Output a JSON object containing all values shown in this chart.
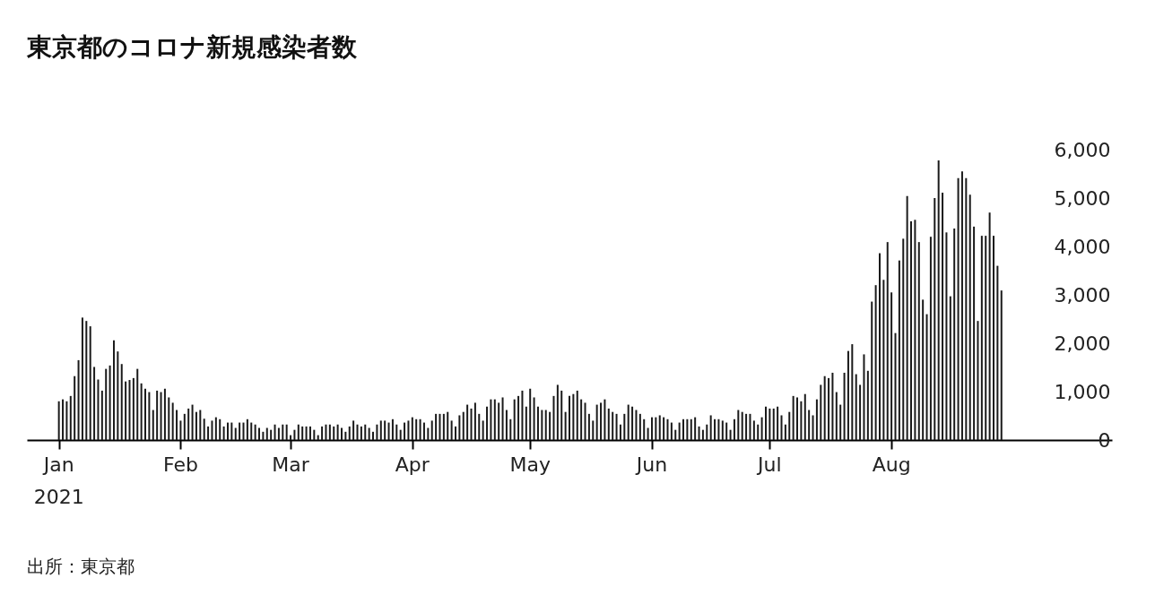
{
  "chart_data": {
    "type": "bar",
    "title": "東京都のコロナ新規感染者数",
    "annotations": [
      "出所：東京都"
    ],
    "color": "#1a1a1a",
    "grid": false,
    "xlim": [
      "2020-12-25",
      "2021-09-25"
    ],
    "xticks": [
      {
        "value": "2021-01-01",
        "label": "Jan\n2021"
      },
      {
        "value": "2021-02-01",
        "label": "Feb"
      },
      {
        "value": "2021-03-01",
        "label": "Mar"
      },
      {
        "value": "2021-04-01",
        "label": "Apr"
      },
      {
        "value": "2021-05-01",
        "label": "May"
      },
      {
        "value": "2021-06-01",
        "label": "Jun"
      },
      {
        "value": "2021-07-01",
        "label": "Jul"
      },
      {
        "value": "2021-08-01",
        "label": "Aug"
      }
    ],
    "ylim": [
      0,
      6000
    ],
    "yticks": [
      {
        "value": 0,
        "label": "0"
      },
      {
        "value": 1000,
        "label": "1,000"
      },
      {
        "value": 2000,
        "label": "2,000"
      },
      {
        "value": 3000,
        "label": "3,000"
      },
      {
        "value": 4000,
        "label": "4,000"
      },
      {
        "value": 5000,
        "label": "5,000"
      },
      {
        "value": 6000,
        "label": "6,000"
      }
    ],
    "x": [
      "2021-01-01",
      "2021-01-02",
      "2021-01-03",
      "2021-01-04",
      "2021-01-05",
      "2021-01-06",
      "2021-01-07",
      "2021-01-08",
      "2021-01-09",
      "2021-01-10",
      "2021-01-11",
      "2021-01-12",
      "2021-01-13",
      "2021-01-14",
      "2021-01-15",
      "2021-01-16",
      "2021-01-17",
      "2021-01-18",
      "2021-01-19",
      "2021-01-20",
      "2021-01-21",
      "2021-01-22",
      "2021-01-23",
      "2021-01-24",
      "2021-01-25",
      "2021-01-26",
      "2021-01-27",
      "2021-01-28",
      "2021-01-29",
      "2021-01-30",
      "2021-01-31",
      "2021-02-01",
      "2021-02-02",
      "2021-02-03",
      "2021-02-04",
      "2021-02-05",
      "2021-02-06",
      "2021-02-07",
      "2021-02-08",
      "2021-02-09",
      "2021-02-10",
      "2021-02-11",
      "2021-02-12",
      "2021-02-13",
      "2021-02-14",
      "2021-02-15",
      "2021-02-16",
      "2021-02-17",
      "2021-02-18",
      "2021-02-19",
      "2021-02-20",
      "2021-02-21",
      "2021-02-22",
      "2021-02-23",
      "2021-02-24",
      "2021-02-25",
      "2021-02-26",
      "2021-02-27",
      "2021-02-28",
      "2021-03-01",
      "2021-03-02",
      "2021-03-03",
      "2021-03-04",
      "2021-03-05",
      "2021-03-06",
      "2021-03-07",
      "2021-03-08",
      "2021-03-09",
      "2021-03-10",
      "2021-03-11",
      "2021-03-12",
      "2021-03-13",
      "2021-03-14",
      "2021-03-15",
      "2021-03-16",
      "2021-03-17",
      "2021-03-18",
      "2021-03-19",
      "2021-03-20",
      "2021-03-21",
      "2021-03-22",
      "2021-03-23",
      "2021-03-24",
      "2021-03-25",
      "2021-03-26",
      "2021-03-27",
      "2021-03-28",
      "2021-03-29",
      "2021-03-30",
      "2021-03-31",
      "2021-04-01",
      "2021-04-02",
      "2021-04-03",
      "2021-04-04",
      "2021-04-05",
      "2021-04-06",
      "2021-04-07",
      "2021-04-08",
      "2021-04-09",
      "2021-04-10",
      "2021-04-11",
      "2021-04-12",
      "2021-04-13",
      "2021-04-14",
      "2021-04-15",
      "2021-04-16",
      "2021-04-17",
      "2021-04-18",
      "2021-04-19",
      "2021-04-20",
      "2021-04-21",
      "2021-04-22",
      "2021-04-23",
      "2021-04-24",
      "2021-04-25",
      "2021-04-26",
      "2021-04-27",
      "2021-04-28",
      "2021-04-29",
      "2021-04-30",
      "2021-05-01",
      "2021-05-02",
      "2021-05-03",
      "2021-05-04",
      "2021-05-05",
      "2021-05-06",
      "2021-05-07",
      "2021-05-08",
      "2021-05-09",
      "2021-05-10",
      "2021-05-11",
      "2021-05-12",
      "2021-05-13",
      "2021-05-14",
      "2021-05-15",
      "2021-05-16",
      "2021-05-17",
      "2021-05-18",
      "2021-05-19",
      "2021-05-20",
      "2021-05-21",
      "2021-05-22",
      "2021-05-23",
      "2021-05-24",
      "2021-05-25",
      "2021-05-26",
      "2021-05-27",
      "2021-05-28",
      "2021-05-29",
      "2021-05-30",
      "2021-05-31",
      "2021-06-01",
      "2021-06-02",
      "2021-06-03",
      "2021-06-04",
      "2021-06-05",
      "2021-06-06",
      "2021-06-07",
      "2021-06-08",
      "2021-06-09",
      "2021-06-10",
      "2021-06-11",
      "2021-06-12",
      "2021-06-13",
      "2021-06-14",
      "2021-06-15",
      "2021-06-16",
      "2021-06-17",
      "2021-06-18",
      "2021-06-19",
      "2021-06-20",
      "2021-06-21",
      "2021-06-22",
      "2021-06-23",
      "2021-06-24",
      "2021-06-25",
      "2021-06-26",
      "2021-06-27",
      "2021-06-28",
      "2021-06-29",
      "2021-06-30",
      "2021-07-01",
      "2021-07-02",
      "2021-07-03",
      "2021-07-04",
      "2021-07-05",
      "2021-07-06",
      "2021-07-07",
      "2021-07-08",
      "2021-07-09",
      "2021-07-10",
      "2021-07-11",
      "2021-07-12",
      "2021-07-13",
      "2021-07-14",
      "2021-07-15",
      "2021-07-16",
      "2021-07-17",
      "2021-07-18",
      "2021-07-19",
      "2021-07-20",
      "2021-07-21",
      "2021-07-22",
      "2021-07-23",
      "2021-07-24",
      "2021-07-25",
      "2021-07-26",
      "2021-07-27",
      "2021-07-28",
      "2021-07-29",
      "2021-07-30",
      "2021-07-31",
      "2021-08-01",
      "2021-08-02",
      "2021-08-03",
      "2021-08-04",
      "2021-08-05",
      "2021-08-06",
      "2021-08-07",
      "2021-08-08",
      "2021-08-09",
      "2021-08-10",
      "2021-08-11",
      "2021-08-12",
      "2021-08-13",
      "2021-08-14",
      "2021-08-15",
      "2021-08-16",
      "2021-08-17",
      "2021-08-18",
      "2021-08-19",
      "2021-08-20",
      "2021-08-21",
      "2021-08-22",
      "2021-08-23",
      "2021-08-24",
      "2021-08-25",
      "2021-08-26",
      "2021-08-27",
      "2021-08-28",
      "2021-08-29"
    ],
    "values": [
      800,
      840,
      800,
      910,
      1320,
      1650,
      2530,
      2460,
      2350,
      1510,
      1250,
      1020,
      1470,
      1540,
      2060,
      1830,
      1570,
      1210,
      1240,
      1280,
      1470,
      1170,
      1060,
      990,
      620,
      1020,
      990,
      1060,
      880,
      770,
      620,
      400,
      540,
      650,
      730,
      580,
      620,
      440,
      280,
      400,
      470,
      430,
      280,
      360,
      360,
      250,
      360,
      360,
      430,
      360,
      320,
      250,
      170,
      250,
      210,
      320,
      250,
      320,
      320,
      100,
      210,
      320,
      280,
      280,
      280,
      210,
      100,
      280,
      320,
      320,
      280,
      320,
      250,
      170,
      280,
      400,
      320,
      280,
      320,
      250,
      170,
      320,
      400,
      400,
      360,
      430,
      320,
      210,
      360,
      400,
      470,
      430,
      430,
      360,
      250,
      400,
      540,
      540,
      540,
      580,
      400,
      280,
      510,
      580,
      730,
      650,
      770,
      540,
      400,
      690,
      840,
      840,
      770,
      880,
      620,
      430,
      840,
      910,
      1020,
      690,
      1060,
      880,
      690,
      620,
      620,
      580,
      910,
      1140,
      1020,
      580,
      910,
      950,
      1020,
      840,
      770,
      540,
      400,
      730,
      770,
      840,
      650,
      580,
      540,
      320,
      540,
      730,
      690,
      620,
      540,
      430,
      250,
      470,
      470,
      510,
      470,
      430,
      360,
      210,
      360,
      430,
      430,
      430,
      470,
      280,
      210,
      320,
      510,
      430,
      430,
      400,
      360,
      210,
      430,
      620,
      580,
      540,
      540,
      400,
      320,
      470,
      690,
      650,
      650,
      690,
      510,
      320,
      580,
      910,
      880,
      800,
      950,
      620,
      510,
      840,
      1140,
      1320,
      1280,
      1390,
      990,
      730,
      1390,
      1840,
      1980,
      1360,
      1140,
      1770,
      1430,
      2860,
      3200,
      3860,
      3310,
      4090,
      3050,
      2210,
      3710,
      4160,
      5040,
      4520,
      4550,
      4090,
      2900,
      2600,
      4200,
      5000,
      5780,
      5110,
      4290,
      2970,
      4370,
      5410,
      5550,
      5410,
      5070,
      4410,
      2460,
      4220,
      4220,
      4700,
      4220,
      3600,
      3090
    ]
  }
}
